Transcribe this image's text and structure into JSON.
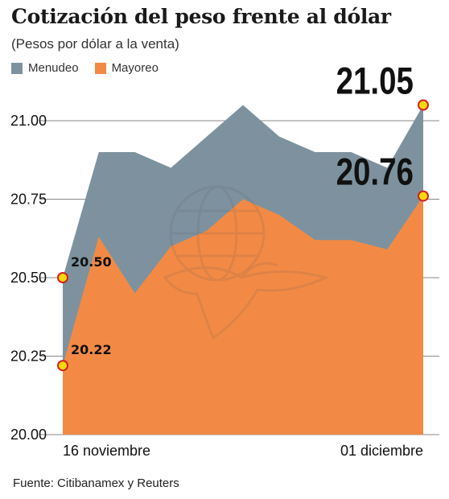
{
  "title": "Cotización del peso frente al dólar",
  "subtitle": "(Pesos por dólar a la venta)",
  "legend": [
    {
      "label": "Menudeo",
      "color": "#7d929e"
    },
    {
      "label": "Mayoreo",
      "color": "#f28a45"
    }
  ],
  "source": "Fuente: Citibanamex y Reuters",
  "chart_data": {
    "type": "area",
    "x_tick_labels": [
      "16 noviembre",
      "01 diciembre"
    ],
    "ylim": [
      20.0,
      21.05
    ],
    "y_ticks": [
      20.0,
      20.25,
      20.5,
      20.75,
      21.0
    ],
    "y_tick_labels": [
      "20.00",
      "20.25",
      "20.50",
      "20.75",
      "21.00"
    ],
    "series": [
      {
        "name": "Menudeo",
        "color": "#7d929e",
        "values": [
          20.5,
          20.9,
          20.9,
          20.85,
          20.95,
          21.05,
          20.95,
          20.9,
          20.9,
          20.85,
          21.05
        ]
      },
      {
        "name": "Mayoreo",
        "color": "#f28a45",
        "values": [
          20.22,
          20.63,
          20.45,
          20.6,
          20.65,
          20.75,
          20.7,
          20.62,
          20.62,
          20.59,
          20.76
        ]
      }
    ],
    "annotations": [
      {
        "series": 0,
        "point": 0,
        "text": "20.50",
        "style": "small"
      },
      {
        "series": 1,
        "point": 0,
        "text": "20.22",
        "style": "small"
      },
      {
        "series": 0,
        "point": 10,
        "text": "21.05",
        "style": "big"
      },
      {
        "series": 1,
        "point": 10,
        "text": "20.76",
        "style": "big"
      }
    ],
    "grid": true
  }
}
